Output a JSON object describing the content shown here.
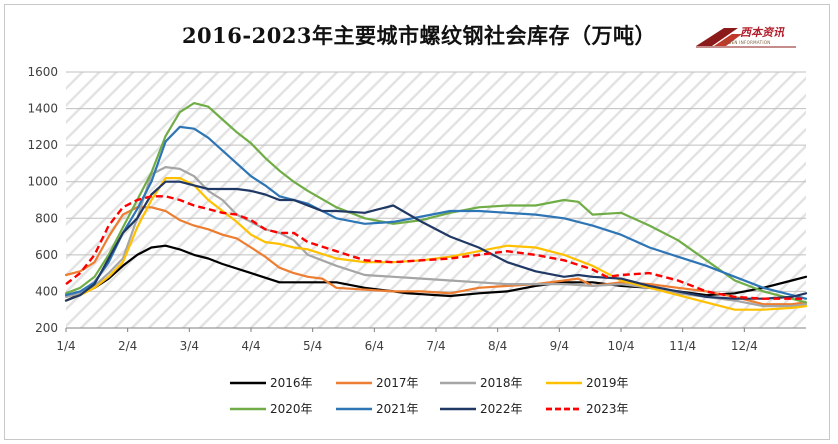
{
  "chart_data": {
    "type": "line",
    "title": "2016-2023年主要城市螺纹钢社会库存（万吨）",
    "xlabel": "",
    "ylabel": "",
    "ylim": [
      200,
      1600
    ],
    "yticks": [
      200,
      400,
      600,
      800,
      1000,
      1200,
      1400,
      1600
    ],
    "x_ticks": [
      "1/4",
      "2/4",
      "3/4",
      "4/4",
      "5/4",
      "6/4",
      "7/4",
      "8/4",
      "9/4",
      "10/4",
      "11/4",
      "12/4"
    ],
    "week_range": [
      1,
      53
    ],
    "legend_position": "bottom",
    "series": [
      {
        "name": "2016年",
        "color": "#000000",
        "dash": false,
        "width": 2.2,
        "x": [
          1,
          3,
          4,
          5,
          6,
          7,
          8,
          9,
          10,
          11,
          12,
          14,
          16,
          18,
          19,
          20,
          22,
          24,
          25,
          26,
          27,
          28,
          30,
          32,
          34,
          36,
          38,
          40,
          42,
          44,
          46,
          48,
          50,
          52,
          53
        ],
        "y": [
          350,
          420,
          470,
          540,
          600,
          640,
          650,
          630,
          600,
          580,
          550,
          500,
          450,
          450,
          450,
          450,
          420,
          400,
          390,
          385,
          380,
          375,
          390,
          400,
          430,
          450,
          450,
          430,
          420,
          400,
          380,
          390,
          420,
          460,
          480
        ]
      },
      {
        "name": "2017年",
        "color": "#ed7d31",
        "dash": false,
        "width": 2.2,
        "x": [
          1,
          2,
          3,
          4,
          5,
          6,
          7,
          8,
          9,
          10,
          11,
          12,
          13,
          14,
          15,
          16,
          17,
          18,
          19,
          20,
          22,
          24,
          26,
          28,
          30,
          32,
          34,
          36,
          37,
          38,
          40,
          42,
          44,
          46,
          48,
          50,
          52,
          53
        ],
        "y": [
          490,
          510,
          560,
          700,
          820,
          860,
          860,
          840,
          790,
          760,
          740,
          710,
          690,
          640,
          590,
          530,
          500,
          480,
          470,
          420,
          410,
          400,
          400,
          390,
          420,
          430,
          440,
          460,
          470,
          430,
          450,
          440,
          420,
          400,
          370,
          330,
          330,
          340
        ]
      },
      {
        "name": "2018年",
        "color": "#a5a5a5",
        "dash": false,
        "width": 2.2,
        "x": [
          1,
          2,
          3,
          4,
          5,
          6,
          7,
          8,
          9,
          10,
          11,
          12,
          13,
          14,
          15,
          16,
          17,
          18,
          20,
          22,
          24,
          26,
          28,
          30,
          32,
          34,
          36,
          38,
          40,
          42,
          44,
          46,
          48,
          50,
          52,
          53
        ],
        "y": [
          370,
          390,
          430,
          500,
          580,
          800,
          1040,
          1080,
          1070,
          1030,
          950,
          900,
          820,
          780,
          740,
          720,
          680,
          600,
          540,
          490,
          480,
          470,
          460,
          450,
          440,
          440,
          440,
          430,
          440,
          420,
          390,
          370,
          350,
          320,
          320,
          330
        ]
      },
      {
        "name": "2019年",
        "color": "#ffc000",
        "dash": false,
        "width": 2.2,
        "x": [
          1,
          2,
          3,
          4,
          5,
          6,
          7,
          8,
          9,
          10,
          11,
          12,
          13,
          14,
          15,
          16,
          17,
          18,
          20,
          22,
          24,
          26,
          28,
          30,
          32,
          34,
          36,
          38,
          40,
          42,
          44,
          46,
          48,
          50,
          52,
          53
        ],
        "y": [
          350,
          380,
          420,
          480,
          560,
          750,
          900,
          1020,
          1020,
          980,
          900,
          840,
          780,
          710,
          670,
          660,
          640,
          630,
          580,
          560,
          560,
          570,
          590,
          620,
          650,
          640,
          600,
          540,
          460,
          420,
          380,
          340,
          300,
          300,
          310,
          320
        ]
      },
      {
        "name": "2020年",
        "color": "#70ad47",
        "dash": false,
        "width": 2.2,
        "x": [
          1,
          2,
          3,
          4,
          5,
          6,
          7,
          8,
          9,
          10,
          11,
          12,
          13,
          14,
          15,
          16,
          17,
          18,
          20,
          22,
          24,
          26,
          28,
          30,
          32,
          34,
          36,
          37,
          38,
          40,
          42,
          44,
          46,
          48,
          50,
          52,
          53
        ],
        "y": [
          390,
          420,
          480,
          600,
          750,
          900,
          1050,
          1250,
          1380,
          1430,
          1410,
          1340,
          1270,
          1210,
          1130,
          1060,
          1000,
          950,
          860,
          800,
          770,
          790,
          830,
          860,
          870,
          870,
          900,
          890,
          820,
          830,
          760,
          680,
          570,
          460,
          400,
          360,
          340
        ]
      },
      {
        "name": "2021年",
        "color": "#2e75b6",
        "dash": false,
        "width": 2.2,
        "x": [
          1,
          2,
          3,
          4,
          5,
          6,
          7,
          8,
          9,
          10,
          11,
          12,
          13,
          14,
          15,
          16,
          17,
          18,
          20,
          22,
          24,
          26,
          28,
          30,
          32,
          34,
          36,
          38,
          40,
          42,
          44,
          46,
          48,
          50,
          52,
          53
        ],
        "y": [
          380,
          400,
          450,
          560,
          720,
          850,
          1000,
          1220,
          1300,
          1290,
          1240,
          1170,
          1100,
          1030,
          980,
          920,
          900,
          880,
          800,
          770,
          780,
          810,
          840,
          840,
          830,
          820,
          800,
          760,
          710,
          640,
          590,
          540,
          480,
          420,
          380,
          360
        ]
      },
      {
        "name": "2022年",
        "color": "#203864",
        "dash": false,
        "width": 2.2,
        "x": [
          1,
          2,
          3,
          4,
          5,
          6,
          7,
          8,
          9,
          10,
          11,
          12,
          13,
          14,
          15,
          16,
          17,
          18,
          19,
          20,
          22,
          23,
          24,
          26,
          28,
          30,
          32,
          34,
          36,
          37,
          38,
          40,
          42,
          44,
          46,
          48,
          50,
          52,
          53
        ],
        "y": [
          350,
          380,
          440,
          580,
          720,
          800,
          930,
          1000,
          1000,
          980,
          960,
          960,
          960,
          950,
          930,
          900,
          900,
          870,
          840,
          840,
          830,
          850,
          870,
          780,
          700,
          640,
          560,
          510,
          480,
          490,
          480,
          470,
          430,
          400,
          370,
          360,
          360,
          370,
          390
        ]
      },
      {
        "name": "2023年",
        "color": "#ff0000",
        "dash": true,
        "width": 2.4,
        "x": [
          1,
          2,
          3,
          4,
          5,
          6,
          7,
          8,
          9,
          10,
          11,
          12,
          13,
          14,
          15,
          16,
          17,
          18,
          20,
          22,
          24,
          26,
          28,
          30,
          32,
          34,
          36,
          38,
          39,
          40,
          42,
          44,
          46,
          48,
          50,
          52,
          53
        ],
        "y": [
          440,
          500,
          600,
          760,
          860,
          900,
          920,
          920,
          900,
          870,
          850,
          830,
          820,
          790,
          740,
          720,
          720,
          670,
          620,
          570,
          560,
          570,
          580,
          600,
          620,
          600,
          570,
          520,
          480,
          490,
          500,
          460,
          400,
          370,
          360,
          360,
          360
        ]
      }
    ]
  },
  "logo": {
    "name": "西本资讯",
    "subtext": "XIBEN INFORMATION"
  }
}
